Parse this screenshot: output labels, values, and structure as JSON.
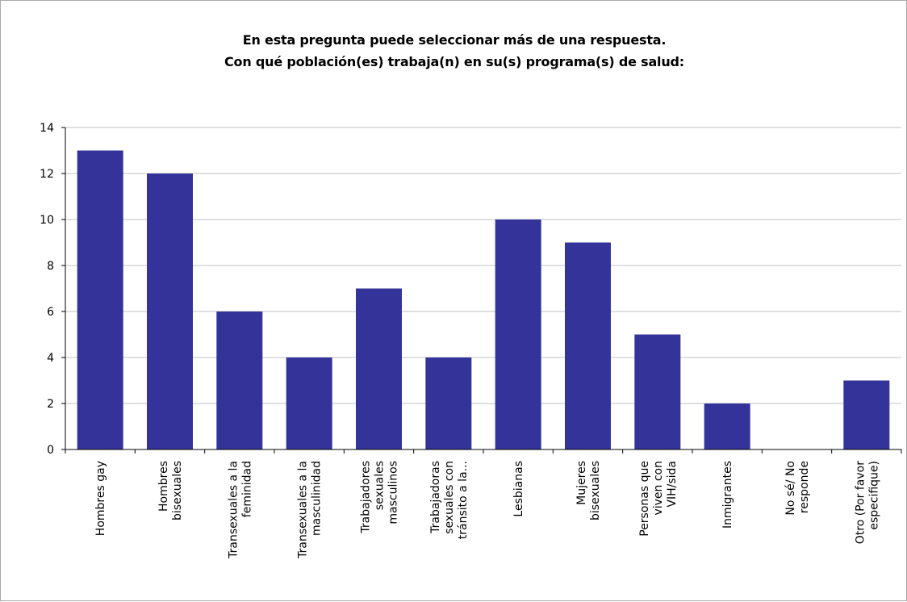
{
  "chart_data": {
    "type": "bar",
    "title": [
      "En esta pregunta puede seleccionar más de una respuesta.",
      "Con qué población(es) trabaja(n) en su(s) programa(s) de salud:"
    ],
    "categories": [
      [
        "Hombres gay"
      ],
      [
        "Hombres",
        "bisexuales"
      ],
      [
        "Transexuales a la",
        "feminidad"
      ],
      [
        "Transexuales a la",
        "masculinidad"
      ],
      [
        "Trabajadores",
        "sexuales",
        "masculinos"
      ],
      [
        "Trabajadoras",
        "sexuales con",
        "tránsito a la..."
      ],
      [
        "Lesbianas"
      ],
      [
        "Mujeres",
        "bisexuales"
      ],
      [
        "Personas que",
        "viven con",
        "VIH/sida"
      ],
      [
        "Inmigrantes"
      ],
      [
        "No sé/ No",
        "responde"
      ],
      [
        "Otro (Por favor",
        "especifique)"
      ]
    ],
    "values": [
      13,
      12,
      6,
      4,
      7,
      4,
      10,
      9,
      5,
      2,
      0,
      3
    ],
    "ylim": [
      0,
      14
    ],
    "yticks": [
      0,
      2,
      4,
      6,
      8,
      10,
      12,
      14
    ],
    "xlabel": "",
    "ylabel": "",
    "grid": true,
    "legend": "none",
    "bar_color": "#333399",
    "grid_color": "#c0c0c0"
  }
}
